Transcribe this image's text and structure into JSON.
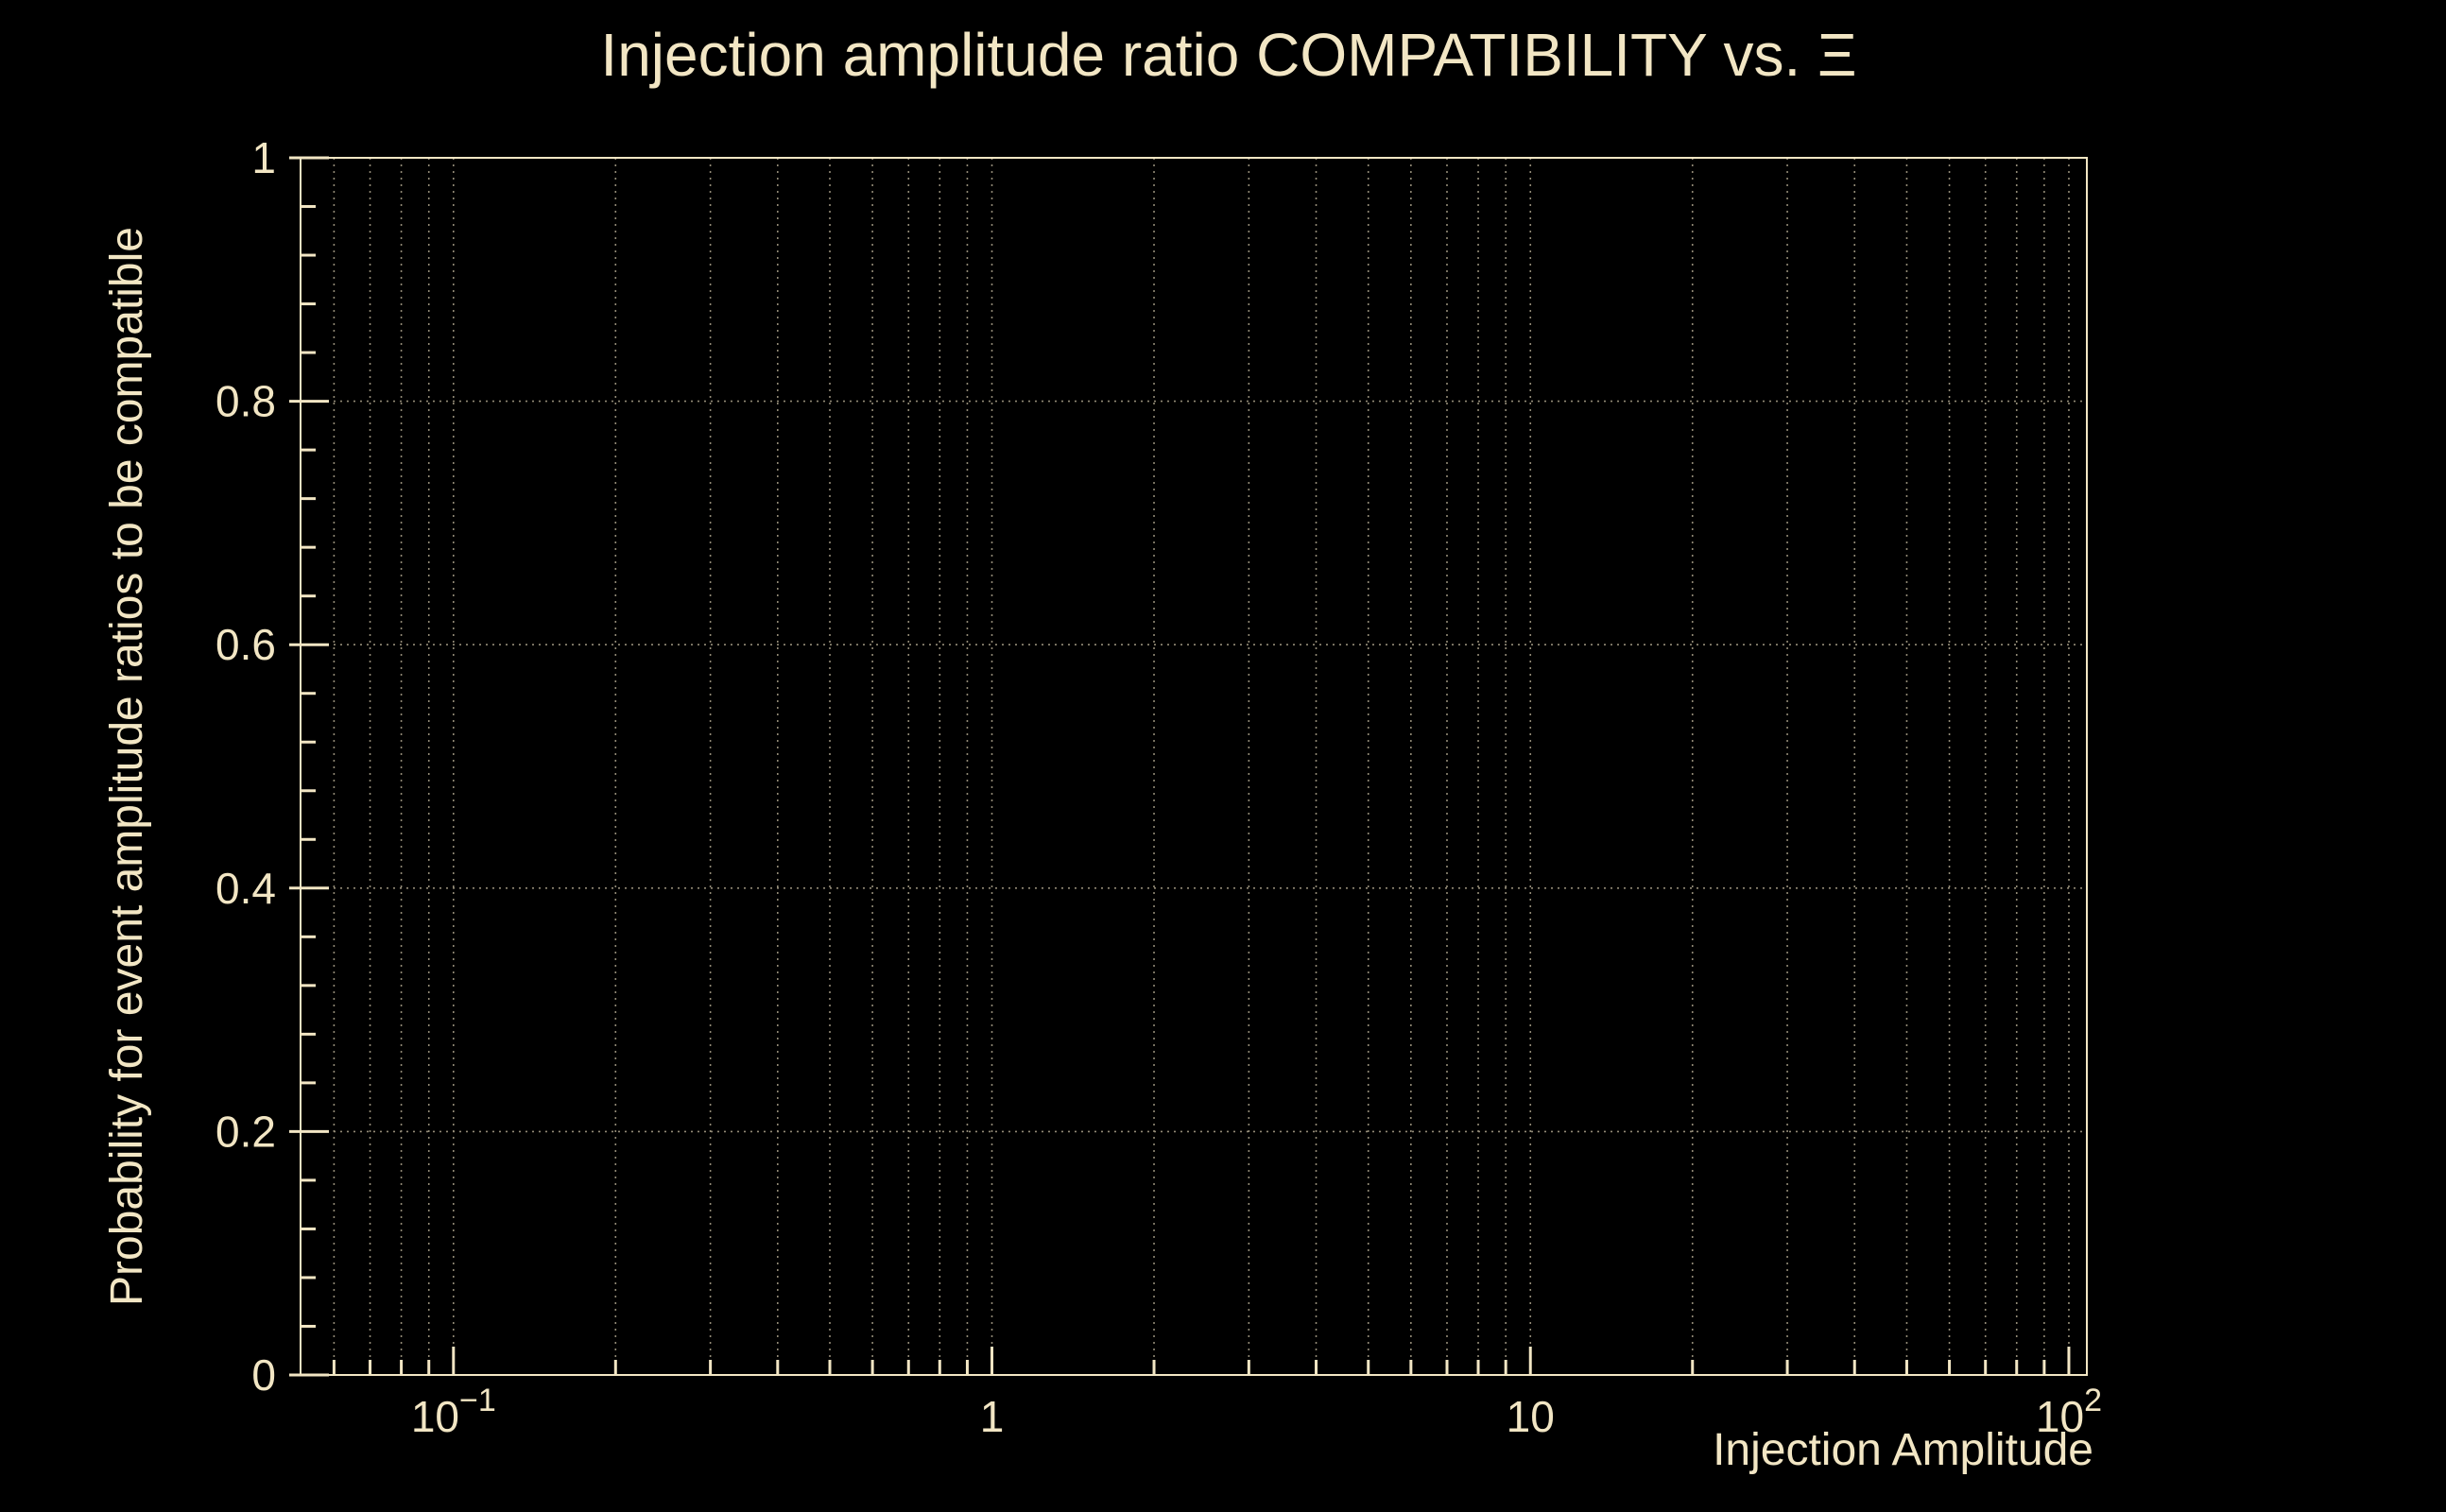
{
  "colors": {
    "background": "#000000",
    "foreground": "#f2e6c4",
    "grid": "#938b77"
  },
  "chart_data": {
    "type": "line",
    "title": "Injection amplitude ratio COMPATIBILITY vs.  Ξ",
    "xlabel": "Injection Amplitude",
    "ylabel": "Probability for event amplitude ratios to be compatible",
    "x_scale": "log",
    "xlim": [
      0.052,
      108
    ],
    "ylim": [
      0,
      1
    ],
    "x_ticks": [
      {
        "v": 0.1,
        "base": "10",
        "exp": "−1"
      },
      {
        "v": 1,
        "base": "1",
        "exp": ""
      },
      {
        "v": 10,
        "base": "10",
        "exp": ""
      },
      {
        "v": 100,
        "base": "10",
        "exp": "2"
      }
    ],
    "y_ticks": [
      {
        "v": 0,
        "label": "0"
      },
      {
        "v": 0.2,
        "label": "0.2"
      },
      {
        "v": 0.4,
        "label": "0.4"
      },
      {
        "v": 0.6,
        "label": "0.6"
      },
      {
        "v": 0.8,
        "label": "0.8"
      },
      {
        "v": 1,
        "label": "1"
      }
    ],
    "y_minor_step": 0.04,
    "grid": true,
    "legend": null,
    "series": []
  }
}
